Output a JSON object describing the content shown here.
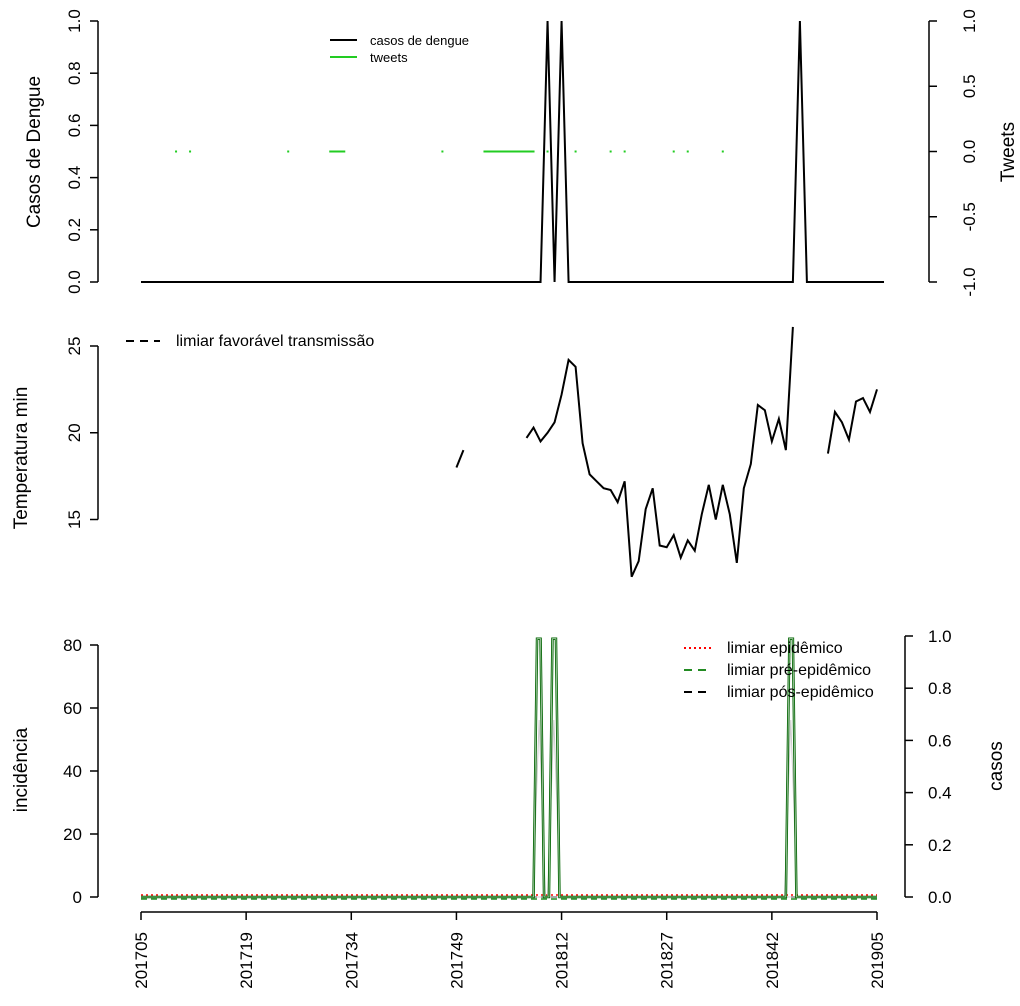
{
  "chart_data": [
    {
      "type": "line",
      "ylabel": "Casos de Dengue",
      "y2label": "Tweets",
      "ylim": [
        0,
        1
      ],
      "y2lim": [
        -1,
        1
      ],
      "yticks": [
        "0.0",
        "0.2",
        "0.4",
        "0.6",
        "0.8",
        "1.0"
      ],
      "y2ticks": [
        "-1.0",
        "-0.5",
        "0.0",
        "0.5",
        "1.0"
      ],
      "legend_position": "top-center",
      "series": [
        {
          "name": "casos de dengue",
          "color": "#000000",
          "points": [
            [
              0,
              0
            ],
            [
              57,
              0
            ],
            [
              58,
              1
            ],
            [
              59,
              0
            ],
            [
              60,
              1
            ],
            [
              61,
              0
            ],
            [
              93,
              0
            ],
            [
              94,
              1
            ],
            [
              95,
              0
            ],
            [
              106,
              0
            ]
          ]
        },
        {
          "name": "tweets",
          "color": "#22cc22",
          "segments": [
            [
              5,
              5
            ],
            [
              7,
              7
            ],
            [
              21,
              21
            ],
            [
              27,
              29
            ],
            [
              43,
              43
            ],
            [
              49,
              56
            ],
            [
              58,
              58
            ],
            [
              62,
              62
            ],
            [
              67,
              67
            ],
            [
              69,
              69
            ],
            [
              76,
              76
            ],
            [
              78,
              78
            ],
            [
              83,
              83
            ]
          ],
          "value": 0
        }
      ]
    },
    {
      "type": "line",
      "ylabel": "Temperatura min",
      "yticks": [
        "15",
        "20",
        "25"
      ],
      "legend_position": "top-left",
      "legend": [
        {
          "name": "limiar favorável transmissão",
          "style": "dashed",
          "color": "#000000"
        }
      ],
      "series": [
        {
          "name": "temperatura min",
          "color": "#000000",
          "segments": [
            [
              [
                45,
                18.0
              ],
              [
                46,
                19.0
              ]
            ],
            [
              [
                55,
                19.7
              ],
              [
                56,
                20.3
              ],
              [
                57,
                19.5
              ],
              [
                58,
                20.0
              ],
              [
                59,
                20.6
              ],
              [
                60,
                22.2
              ],
              [
                61,
                24.2
              ],
              [
                62,
                23.8
              ],
              [
                63,
                19.4
              ],
              [
                64,
                17.6
              ],
              [
                65,
                17.2
              ],
              [
                66,
                16.8
              ],
              [
                67,
                16.7
              ],
              [
                68,
                16.0
              ],
              [
                69,
                17.2
              ],
              [
                70,
                11.7
              ],
              [
                71,
                12.6
              ],
              [
                72,
                15.6
              ],
              [
                73,
                16.8
              ],
              [
                74,
                13.5
              ],
              [
                75,
                13.4
              ],
              [
                76,
                14.1
              ],
              [
                77,
                12.8
              ],
              [
                78,
                13.8
              ],
              [
                79,
                13.2
              ],
              [
                80,
                15.3
              ],
              [
                81,
                17.0
              ],
              [
                82,
                15.0
              ],
              [
                83,
                17.0
              ],
              [
                84,
                15.3
              ],
              [
                85,
                12.5
              ],
              [
                86,
                16.8
              ],
              [
                87,
                18.2
              ],
              [
                88,
                21.6
              ],
              [
                89,
                21.3
              ],
              [
                90,
                19.5
              ],
              [
                91,
                20.8
              ],
              [
                92,
                19.0
              ],
              [
                93,
                26.1
              ]
            ],
            [
              [
                98,
                18.8
              ],
              [
                99,
                21.2
              ],
              [
                100,
                20.6
              ],
              [
                101,
                19.6
              ],
              [
                102,
                21.8
              ],
              [
                103,
                22.0
              ],
              [
                104,
                21.2
              ],
              [
                105,
                22.5
              ]
            ]
          ]
        }
      ]
    },
    {
      "type": "line",
      "ylabel": "incidência",
      "y2label": "casos",
      "ylim": [
        0,
        80
      ],
      "y2lim": [
        0,
        1
      ],
      "yticks": [
        "0",
        "20",
        "40",
        "60",
        "80"
      ],
      "y2ticks": [
        "0.0",
        "0.2",
        "0.4",
        "0.6",
        "0.8",
        "1.0"
      ],
      "legend_position": "top-right",
      "x_tick_labels": [
        "201705",
        "201719",
        "201734",
        "201749",
        "201812",
        "201827",
        "201842",
        "201905"
      ],
      "x_tick_index": [
        0,
        15,
        30,
        45,
        60,
        75,
        90,
        105
      ],
      "legend": [
        {
          "name": "limiar epidêmico",
          "style": "dotted",
          "color": "#ff0000"
        },
        {
          "name": "limiar pré-epidêmico",
          "style": "dashed",
          "color": "#228B22"
        },
        {
          "name": "limiar pós-epidêmico",
          "style": "dashed",
          "color": "#000000"
        }
      ],
      "series": [
        {
          "name": "incidência",
          "color": "#006400",
          "points": [
            [
              0,
              0
            ],
            [
              56,
              0
            ],
            [
              56.5,
              82
            ],
            [
              57,
              82
            ],
            [
              57.5,
              0
            ],
            [
              58.2,
              0
            ],
            [
              58.7,
              82
            ],
            [
              59.2,
              82
            ],
            [
              59.7,
              0
            ],
            [
              92,
              0
            ],
            [
              92.5,
              82
            ],
            [
              93,
              82
            ],
            [
              93.5,
              0
            ],
            [
              105,
              0
            ]
          ]
        }
      ]
    }
  ]
}
